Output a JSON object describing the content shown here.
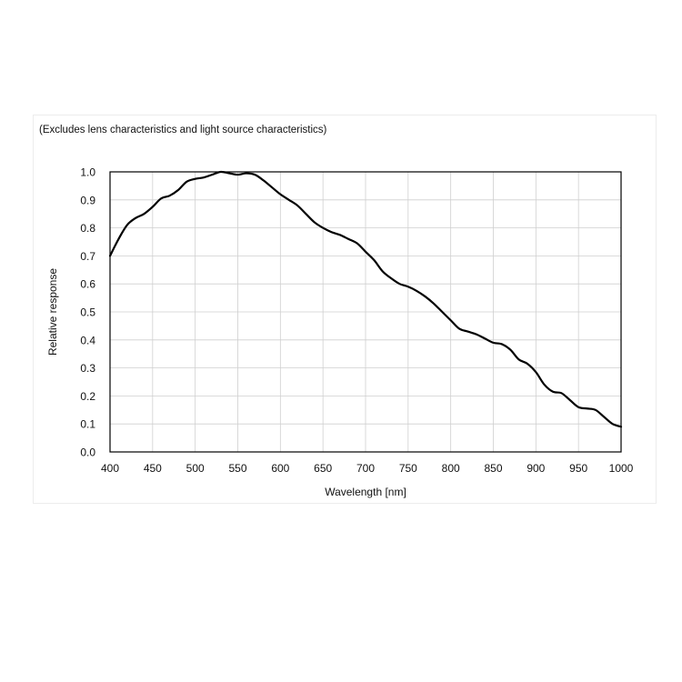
{
  "chart_data": {
    "type": "line",
    "subtitle": "(Excludes lens characteristics and light source characteristics)",
    "xlabel": "Wavelength [nm]",
    "ylabel": "Relative response",
    "xlim": [
      400,
      1000
    ],
    "ylim": [
      0,
      1.0
    ],
    "xticks": [
      400,
      450,
      500,
      550,
      600,
      650,
      700,
      750,
      800,
      850,
      900,
      950,
      1000
    ],
    "yticks": [
      0.0,
      0.1,
      0.2,
      0.3,
      0.4,
      0.5,
      0.6,
      0.7,
      0.8,
      0.9,
      1.0
    ],
    "x_tick_labels": [
      "400",
      "450",
      "500",
      "550",
      "600",
      "650",
      "700",
      "750",
      "800",
      "850",
      "900",
      "950",
      "1000"
    ],
    "y_tick_labels": [
      "0.0",
      "0.1",
      "0.2",
      "0.3",
      "0.4",
      "0.5",
      "0.6",
      "0.7",
      "0.8",
      "0.9",
      "1.0"
    ],
    "grid": true,
    "legend": "none",
    "line_color": "#000000",
    "series": [
      {
        "x": [
          400,
          410,
          420,
          430,
          440,
          450,
          460,
          470,
          480,
          490,
          500,
          510,
          520,
          530,
          540,
          550,
          560,
          570,
          580,
          590,
          600,
          610,
          620,
          630,
          640,
          650,
          660,
          670,
          680,
          690,
          700,
          710,
          720,
          730,
          740,
          750,
          760,
          770,
          780,
          790,
          800,
          810,
          820,
          830,
          840,
          850,
          860,
          870,
          880,
          890,
          900,
          910,
          920,
          930,
          940,
          950,
          960,
          970,
          980,
          990,
          1000
        ],
        "y": [
          0.7,
          0.76,
          0.81,
          0.835,
          0.85,
          0.875,
          0.905,
          0.915,
          0.935,
          0.965,
          0.975,
          0.98,
          0.99,
          1.0,
          0.995,
          0.99,
          0.995,
          0.99,
          0.97,
          0.945,
          0.92,
          0.9,
          0.88,
          0.85,
          0.82,
          0.8,
          0.785,
          0.775,
          0.76,
          0.745,
          0.715,
          0.685,
          0.645,
          0.62,
          0.6,
          0.59,
          0.575,
          0.555,
          0.53,
          0.5,
          0.47,
          0.44,
          0.43,
          0.42,
          0.405,
          0.39,
          0.385,
          0.365,
          0.33,
          0.315,
          0.285,
          0.24,
          0.215,
          0.21,
          0.185,
          0.16,
          0.155,
          0.15,
          0.125,
          0.1,
          0.09
        ]
      }
    ]
  }
}
